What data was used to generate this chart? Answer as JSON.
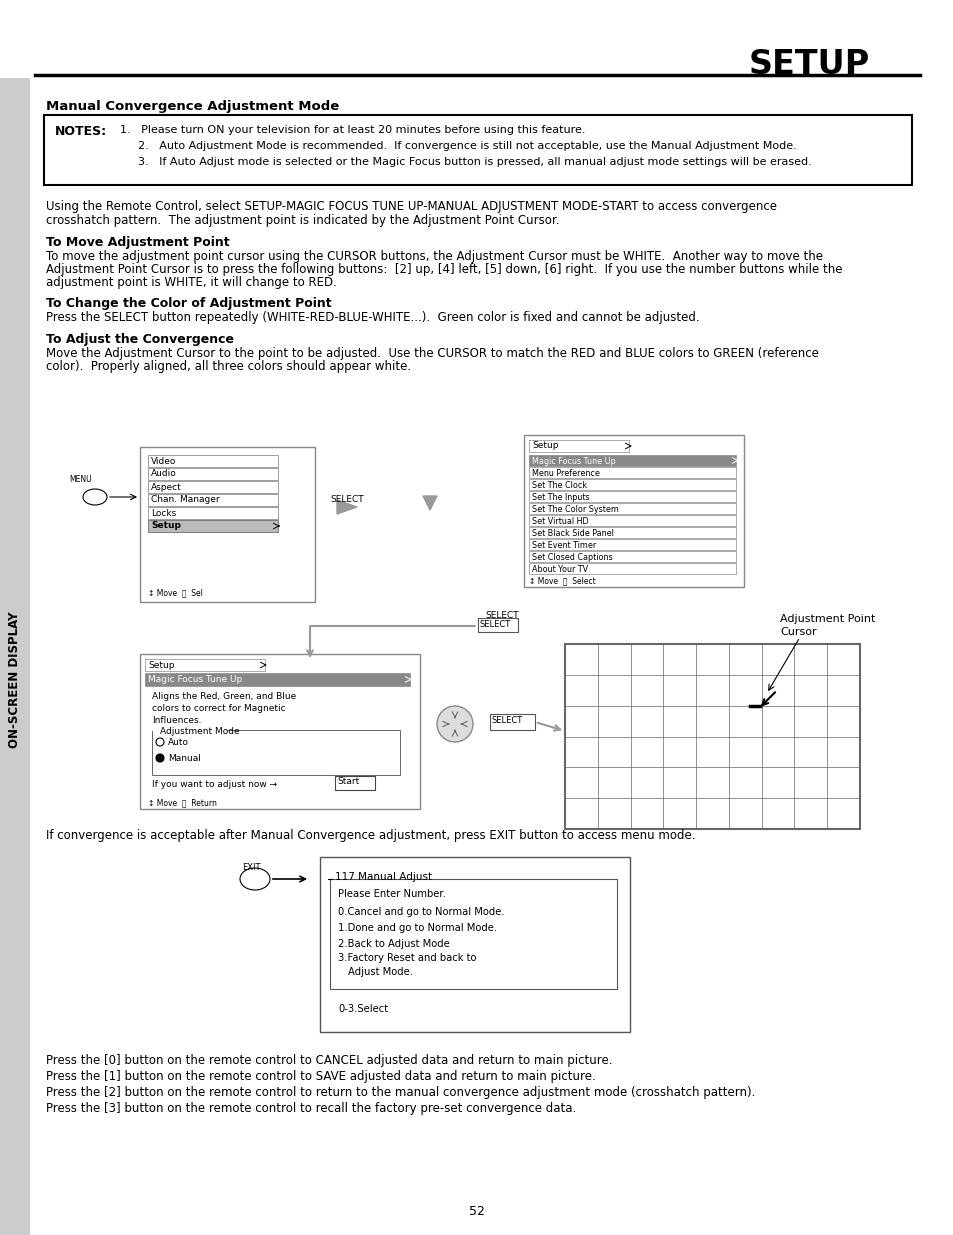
{
  "page_title": "SETUP",
  "section_title": "Manual Convergence Adjustment Mode",
  "notes_label": "NOTES:",
  "notes_items": [
    "1.   Please turn ON your television for at least 20 minutes before using this feature.",
    "2.   Auto Adjustment Mode is recommended.  If convergence is still not acceptable, use the Manual Adjustment Mode.",
    "3.   If Auto Adjust mode is selected or the Magic Focus button is pressed, all manual adjust mode settings will be erased."
  ],
  "para1_lines": [
    "Using the Remote Control, select SETUP-MAGIC FOCUS TUNE UP-MANUAL ADJUSTMENT MODE-START to access convergence",
    "crosshatch pattern.  The adjustment point is indicated by the Adjustment Point Cursor."
  ],
  "sub1_title": "To Move Adjustment Point",
  "sub1_lines": [
    "To move the adjustment point cursor using the CURSOR buttons, the Adjustment Cursor must be WHITE.  Another way to move the",
    "Adjustment Point Cursor is to press the following buttons:  [2] up, [4] left, [5] down, [6] right.  If you use the number buttons while the",
    "adjustment point is WHITE, it will change to RED."
  ],
  "sub2_title": "To Change the Color of Adjustment Point",
  "sub2_line": "Press the SELECT button repeatedly (WHITE-RED-BLUE-WHITE...).  Green color is fixed and cannot be adjusted.",
  "sub3_title": "To Adjust the Convergence",
  "sub3_lines": [
    "Move the Adjustment Cursor to the point to be adjusted.  Use the CURSOR to match the RED and BLUE colors to GREEN (reference",
    "color).  Properly aligned, all three colors should appear white."
  ],
  "menu_items": [
    "Video",
    "Audio",
    "Aspect",
    "Chan. Manager",
    "Locks",
    "Setup"
  ],
  "setup_menu_items": [
    "Magic Focus Tune Up",
    "Menu Preference",
    "Set The Clock",
    "Set The Inputs",
    "Set The Color System",
    "Set Virtual HD",
    "Set Black Side Panel",
    "Set Event Timer",
    "Set Closed Captions",
    "About Your TV"
  ],
  "mf_desc": [
    "Aligns the Red, Green, and Blue",
    "colors to correct for Magnetic",
    "Influences."
  ],
  "para_after": "If convergence is acceptable after Manual Convergence adjustment, press EXIT button to access menu mode.",
  "manual_adjust_title": "117 Manual Adjust",
  "manual_adjust_lines": [
    "Please Enter Number.",
    "0.Cancel and go to Normal Mode.",
    "1.Done and go to Normal Mode.",
    "2.Back to Adjust Mode",
    "3.Factory Reset and back to",
    "   Adjust Mode.",
    "0-3.Select"
  ],
  "press_lines": [
    "Press the [0] button on the remote control to CANCEL adjusted data and return to main picture.",
    "Press the [1] button on the remote control to SAVE adjusted data and return to main picture.",
    "Press the [2] button on the remote control to return to the manual convergence adjustment mode (crosshatch pattern).",
    "Press the [3] button on the remote control to recall the factory pre-set convergence data."
  ],
  "page_number": "52",
  "sidebar_text": "ON-SCREEN DISPLAY",
  "sidebar_bg": "#cccccc",
  "highlight_color": "#aaaaaa",
  "arrow_color": "#999999"
}
